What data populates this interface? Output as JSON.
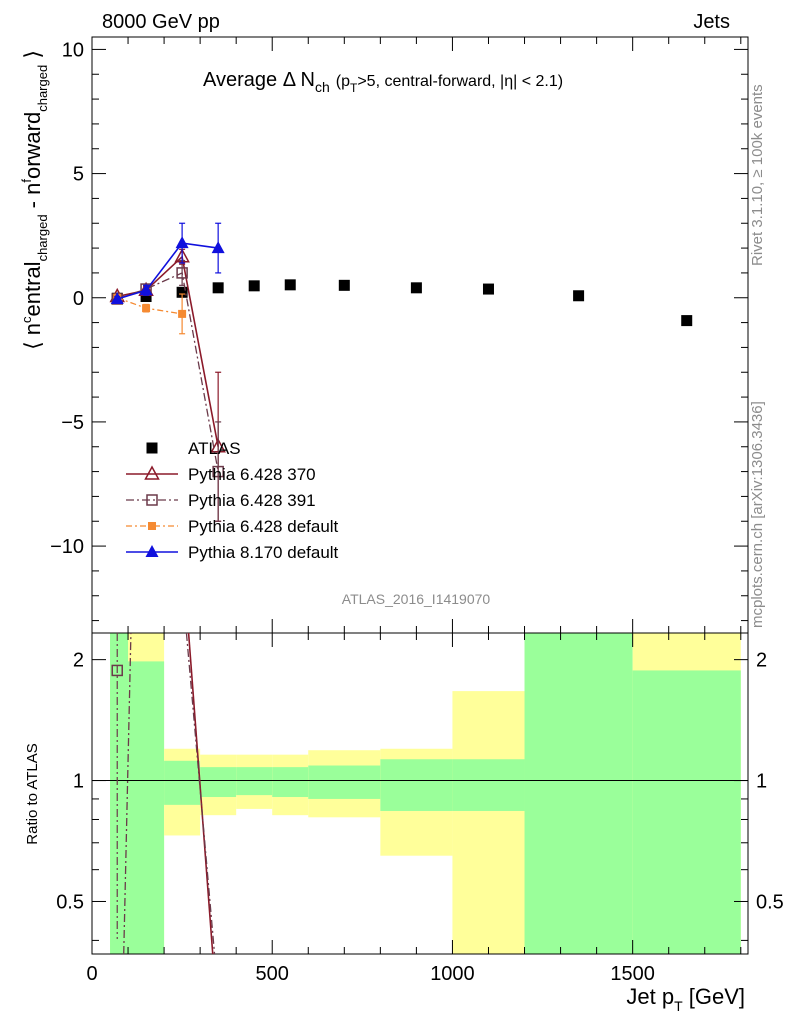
{
  "header": {
    "left": "8000 GeV pp",
    "right": "Jets"
  },
  "side_labels": {
    "rivet": "Rivet 3.1.10, ≥ 100k events",
    "mcplots": "mcplots.cern.ch [arXiv:1306.3436]"
  },
  "analysis_id": "ATLAS_2016_I1419070",
  "title": {
    "main": "Average Δ N",
    "sub": "ch",
    "cut": "(p",
    "cut_sub": "T",
    "cut_rest": ">5, central-forward, |η| < 2.1)"
  },
  "colors": {
    "atlas": "#000000",
    "py370": "#8b1a2a",
    "py391": "#6b3a4a",
    "pydef": "#f58a32",
    "py8": "#1010dd",
    "band_green": "#9aff9a",
    "band_yellow": "#ffff9a"
  },
  "chart_data": [
    {
      "type": "scatter",
      "panel": "main",
      "ylabel": "⟨ n^central_charged - n^forward_charged ⟩",
      "ylim": [
        -13.5,
        10.5
      ],
      "xlim": [
        0,
        1820
      ],
      "yticks": [
        10,
        5,
        0,
        -5,
        -10
      ],
      "ytick_labels": [
        "10",
        "5",
        "0",
        "−5",
        "−10"
      ],
      "legend_position": "lower-left",
      "series": [
        {
          "name": "ATLAS",
          "x": [
            70,
            150,
            250,
            350,
            450,
            550,
            700,
            900,
            1100,
            1350,
            1650
          ],
          "y": [
            -0.02,
            0.05,
            0.22,
            0.4,
            0.48,
            0.52,
            0.5,
            0.4,
            0.35,
            0.08,
            -0.92
          ]
        },
        {
          "name": "Pythia 6.428 370",
          "x": [
            70,
            150,
            250,
            350
          ],
          "y": [
            0.05,
            0.3,
            1.65,
            -6.0
          ],
          "yerr": [
            0.1,
            0.15,
            0.3,
            3.0
          ]
        },
        {
          "name": "Pythia 6.428 391",
          "x": [
            70,
            150,
            250,
            350
          ],
          "y": [
            -0.05,
            0.35,
            1.0,
            -7.0
          ],
          "yerr": [
            0.1,
            0.15,
            0.5,
            2.0
          ]
        },
        {
          "name": "Pythia 6.428 default",
          "x": [
            70,
            150,
            250
          ],
          "y": [
            0.0,
            -0.42,
            -0.65
          ],
          "yerr": [
            0.1,
            0.15,
            0.8
          ]
        },
        {
          "name": "Pythia 8.170 default",
          "x": [
            70,
            150,
            250,
            350
          ],
          "y": [
            -0.05,
            0.3,
            2.2,
            2.0
          ],
          "yerr": [
            0.1,
            0.2,
            0.8,
            1.0
          ]
        }
      ]
    },
    {
      "type": "line",
      "panel": "ratio",
      "ylabel": "Ratio to ATLAS",
      "xlabel": "Jet p_T [GeV]",
      "ylim": [
        0.37,
        2.33
      ],
      "xlim": [
        0,
        1820
      ],
      "yticks": [
        0.5,
        1,
        2
      ],
      "ytick_labels": [
        "0.5",
        "1",
        "2"
      ],
      "xticks": [
        0,
        500,
        1000,
        1500
      ],
      "xtick_labels": [
        "0",
        "500",
        "1000",
        "1500"
      ],
      "bands": [
        {
          "x0": 50,
          "x1": 100,
          "g_lo": 0.37,
          "g_hi": 2.33,
          "y_lo": 0.37,
          "y_hi": 2.33
        },
        {
          "x0": 100,
          "x1": 200,
          "g_lo": 0.37,
          "g_hi": 1.98,
          "y_lo": 0.37,
          "y_hi": 2.33
        },
        {
          "x0": 200,
          "x1": 300,
          "g_lo": 0.87,
          "g_hi": 1.12,
          "y_lo": 0.73,
          "y_hi": 1.2
        },
        {
          "x0": 300,
          "x1": 400,
          "g_lo": 0.91,
          "g_hi": 1.08,
          "y_lo": 0.82,
          "y_hi": 1.16
        },
        {
          "x0": 400,
          "x1": 500,
          "g_lo": 0.92,
          "g_hi": 1.08,
          "y_lo": 0.85,
          "y_hi": 1.16
        },
        {
          "x0": 500,
          "x1": 600,
          "g_lo": 0.91,
          "g_hi": 1.08,
          "y_lo": 0.82,
          "y_hi": 1.16
        },
        {
          "x0": 600,
          "x1": 800,
          "g_lo": 0.9,
          "g_hi": 1.09,
          "y_lo": 0.81,
          "y_hi": 1.19
        },
        {
          "x0": 800,
          "x1": 1000,
          "g_lo": 0.84,
          "g_hi": 1.13,
          "y_lo": 0.65,
          "y_hi": 1.2
        },
        {
          "x0": 1000,
          "x1": 1200,
          "g_lo": 0.84,
          "g_hi": 1.13,
          "y_lo": 0.37,
          "y_hi": 1.67
        },
        {
          "x0": 1200,
          "x1": 1500,
          "g_lo": 0.37,
          "g_hi": 2.33,
          "y_lo": 0.37,
          "y_hi": 2.33
        },
        {
          "x0": 1500,
          "x1": 1800,
          "g_lo": 0.37,
          "g_hi": 1.88,
          "y_lo": 0.37,
          "y_hi": 2.33
        }
      ],
      "lines": [
        {
          "name": "Pythia 6.428 370",
          "points": [
            [
              268,
              2.33
            ],
            [
              335,
              0.37
            ]
          ]
        },
        {
          "name": "Pythia 6.428 391",
          "points": [
            [
              88,
              0.37
            ],
            [
              108,
              2.33
            ]
          ],
          "marker": [
            70,
            1.88
          ]
        },
        {
          "name": "Pythia 6.428 391 (high-pT)",
          "points": [
            [
              262,
              2.33
            ],
            [
              340,
              0.37
            ]
          ]
        }
      ]
    }
  ]
}
